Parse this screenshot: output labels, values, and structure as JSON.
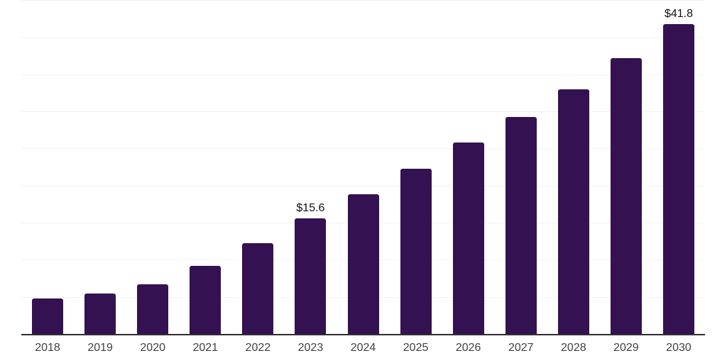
{
  "chart_data": {
    "type": "bar",
    "title": "",
    "xlabel": "",
    "ylabel": "",
    "categories": [
      "2018",
      "2019",
      "2020",
      "2021",
      "2022",
      "2023",
      "2024",
      "2025",
      "2026",
      "2027",
      "2028",
      "2029",
      "2030"
    ],
    "values": [
      4.8,
      5.4,
      6.7,
      9.2,
      12.2,
      15.6,
      18.8,
      22.3,
      25.8,
      29.2,
      33.0,
      37.2,
      41.8
    ],
    "data_labels": [
      null,
      null,
      null,
      null,
      null,
      "$15.6",
      null,
      null,
      null,
      null,
      null,
      null,
      "$41.8"
    ],
    "ylim": [
      0,
      45
    ],
    "gridline_step": 5,
    "grid": "horizontal",
    "legend": "none",
    "colors": {
      "bar": "#341150",
      "gridline": "#f2f2f2",
      "axis_line": "#2e2e2e",
      "tick_label": "#404040",
      "data_label": "#111111",
      "background": "#ffffff"
    }
  }
}
